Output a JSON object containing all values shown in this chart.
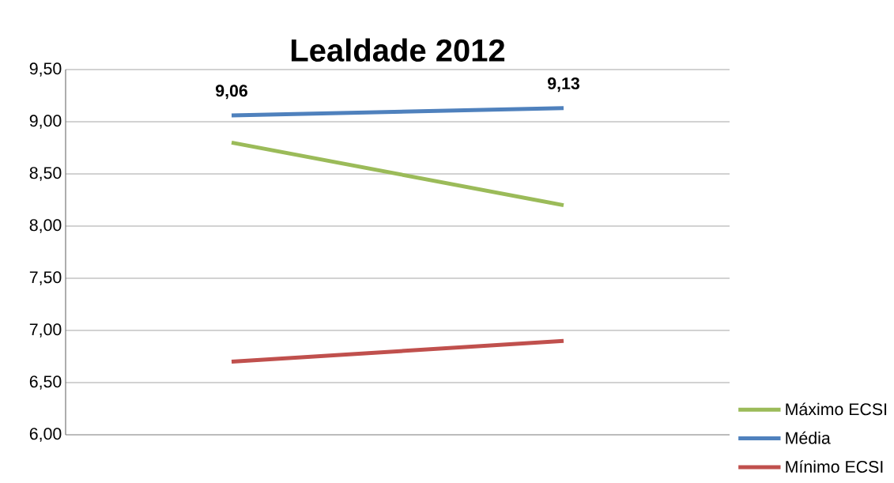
{
  "chart_data": {
    "type": "line",
    "title": "Lealdade 2012",
    "categories": [
      null,
      null
    ],
    "series": [
      {
        "name": "Máximo ECSI",
        "color": "#9bbb59",
        "values": [
          8.8,
          8.2
        ]
      },
      {
        "name": "Média",
        "color": "#4f81bd",
        "values": [
          9.06,
          9.13
        ],
        "value_labels": [
          "9,06",
          "9,13"
        ]
      },
      {
        "name": "Mínimo ECSI",
        "color": "#c0504d",
        "values": [
          6.7,
          6.9
        ]
      }
    ],
    "ylim": [
      6,
      9.5
    ],
    "yticks": [
      {
        "value": 6,
        "label": "6,00"
      },
      {
        "value": 6.5,
        "label": "6,50"
      },
      {
        "value": 7,
        "label": "7,00"
      },
      {
        "value": 7.5,
        "label": "7,50"
      },
      {
        "value": 8,
        "label": "8,00"
      },
      {
        "value": 8.5,
        "label": "8,50"
      },
      {
        "value": 9,
        "label": "9,00"
      },
      {
        "value": 9.5,
        "label": "9,50"
      }
    ],
    "grid": "y",
    "legend": "bottom right",
    "tick_labels": "y",
    "marker": "none",
    "line_style": "solid"
  }
}
